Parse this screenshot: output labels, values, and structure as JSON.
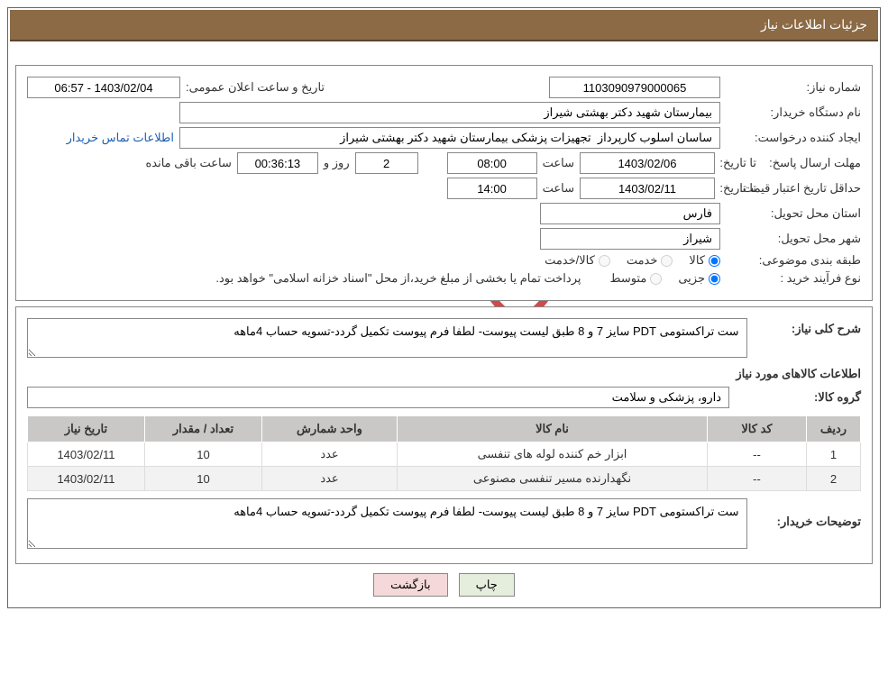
{
  "title_bar": "جزئیات اطلاعات نیاز",
  "watermark_text": "AriaTender.net",
  "colors": {
    "title_bg": "#8c6a45",
    "title_bottom": "#5a4530",
    "border": "#888888",
    "th_bg": "#c9c8c7",
    "row_alt": "#f2f2f2",
    "btn_print": "#e5eedd",
    "btn_back": "#f5d9da",
    "link": "#1a5fb4",
    "watermark": "#ded6d2",
    "shield_stroke": "#cf4a4a"
  },
  "labels": {
    "need_no": "شماره نیاز:",
    "announce_dt": "تاریخ و ساعت اعلان عمومی:",
    "buyer_org": "نام دستگاه خریدار:",
    "requester": "ایجاد کننده درخواست:",
    "contact_link": "اطلاعات تماس خریدار",
    "deadline": "مهلت ارسال پاسخ:",
    "until_date": "تا تاریخ:",
    "time": "ساعت",
    "days_and": "روز و",
    "time_remaining": "ساعت باقی مانده",
    "min_validity": "حداقل تاریخ اعتبار قیمت:",
    "delivery_province": "استان محل تحویل:",
    "delivery_city": "شهر محل تحویل:",
    "subject_class": "طبقه بندی موضوعی:",
    "goods": "کالا",
    "service": "خدمت",
    "goods_service": "کالا/خدمت",
    "purchase_type": "نوع فرآیند خرید :",
    "partial": "جزیی",
    "medium": "متوسط",
    "payment_note": "پرداخت تمام یا بخشی از مبلغ خرید،از محل \"اسناد خزانه اسلامی\" خواهد بود.",
    "need_desc": "شرح کلی نیاز:",
    "items_info": "اطلاعات کالاهای مورد نیاز",
    "goods_group": "گروه کالا:",
    "buyer_notes": "توضیحات خریدار:"
  },
  "values": {
    "need_no": "1103090979000065",
    "announce_dt": "1403/02/04 - 06:57",
    "buyer_org": "بیمارستان شهید دکتر بهشتی شیراز",
    "requester": "ساسان اسلوب کارپرداز  تجهیزات پزشکی بیمارستان شهید دکتر بهشتی شیراز",
    "deadline_date": "1403/02/06",
    "deadline_time": "08:00",
    "days_left": "2",
    "countdown": "00:36:13",
    "validity_date": "1403/02/11",
    "validity_time": "14:00",
    "province": "فارس",
    "city": "شیراز",
    "need_desc": "ست تراکستومی PDT سایز 7 و 8 طبق لیست پیوست- لطفا فرم پیوست تکمیل گردد-تسویه حساب 4ماهه",
    "goods_group": "دارو، پزشکی و سلامت",
    "buyer_notes": "ست تراکستومی PDT سایز 7 و 8 طبق لیست پیوست- لطفا فرم پیوست تکمیل گردد-تسویه حساب 4ماهه"
  },
  "table": {
    "headers": {
      "row": "ردیف",
      "code": "کد کالا",
      "name": "نام کالا",
      "unit": "واحد شمارش",
      "qty": "تعداد / مقدار",
      "date": "تاریخ نیاز"
    },
    "rows": [
      {
        "row": "1",
        "code": "--",
        "name": "ابزار خم کننده لوله های تنفسی",
        "unit": "عدد",
        "qty": "10",
        "date": "1403/02/11"
      },
      {
        "row": "2",
        "code": "--",
        "name": "نگهدارنده مسیر تنفسی مصنوعی",
        "unit": "عدد",
        "qty": "10",
        "date": "1403/02/11"
      }
    ]
  },
  "buttons": {
    "print": "چاپ",
    "back": "بازگشت"
  }
}
